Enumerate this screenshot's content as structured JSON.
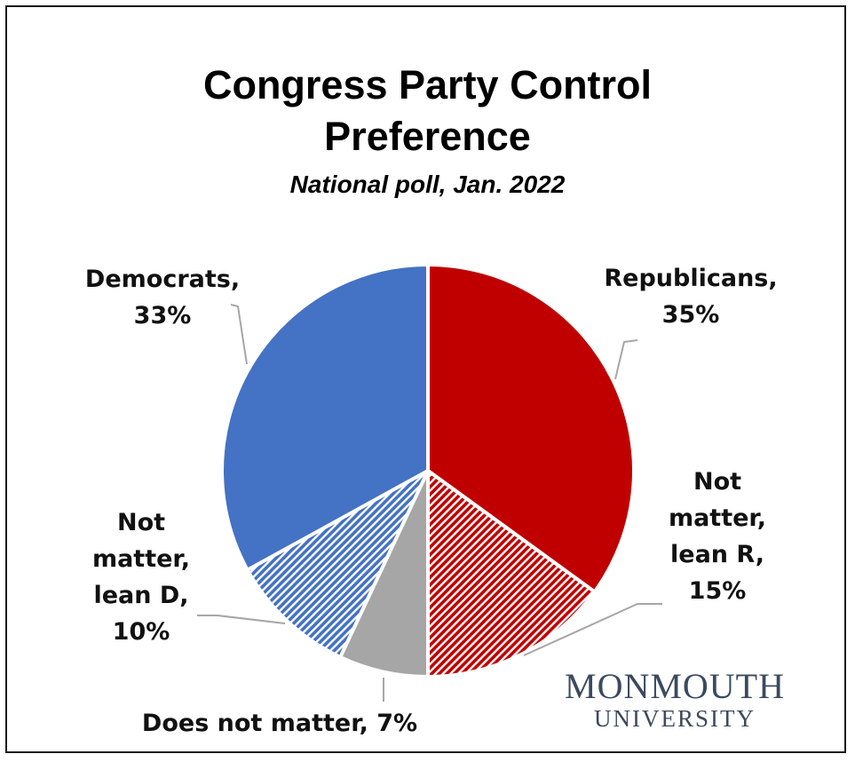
{
  "chart_data": {
    "type": "pie",
    "title": "Congress Party Control Preference",
    "title_lines": [
      "Congress Party Control",
      "Preference"
    ],
    "subtitle": "National poll, Jan. 2022",
    "start_angle_deg": 0,
    "direction": "clockwise",
    "slices": [
      {
        "label": "Republicans, 35%",
        "lines": [
          "Republicans,",
          "35%"
        ],
        "value": 35,
        "color": "#c00000",
        "pattern": "solid"
      },
      {
        "label": "Not matter, lean R, 15%",
        "lines": [
          "Not",
          "matter,",
          "lean R,",
          "15%"
        ],
        "value": 15,
        "color": "#c00000",
        "pattern": "hatched"
      },
      {
        "label": "Does not matter, 7%",
        "lines": [
          "Does not matter, 7%"
        ],
        "value": 7,
        "color": "#a6a6a6",
        "pattern": "solid"
      },
      {
        "label": "Not matter, lean D, 10%",
        "lines": [
          "Not",
          "matter,",
          "lean D,",
          "10%"
        ],
        "value": 10,
        "color": "#4472c4",
        "pattern": "hatched"
      },
      {
        "label": "Democrats, 33%",
        "lines": [
          "Democrats,",
          "33%"
        ],
        "value": 33,
        "color": "#4472c4",
        "pattern": "solid"
      }
    ]
  },
  "logo": {
    "line1": "MONMOUTH",
    "line2": "UNIVERSITY"
  }
}
